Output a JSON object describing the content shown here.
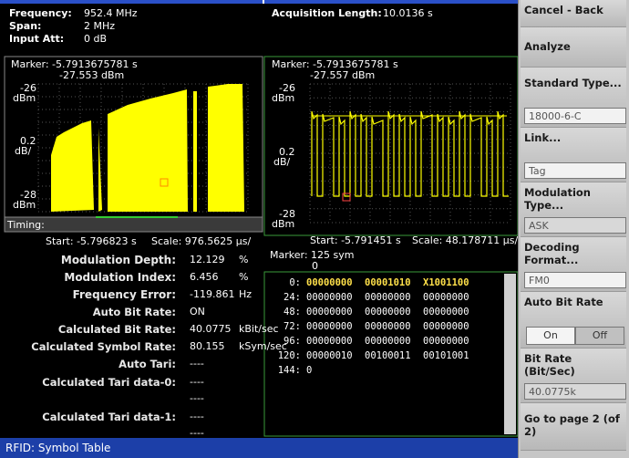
{
  "header": {
    "frequency_label": "Frequency:",
    "frequency": "952.4 MHz",
    "span_label": "Span:",
    "span": "2 MHz",
    "att_label": "Input Att:",
    "att": "0 dB",
    "acq_label": "Acquisition Length:",
    "acq": "10.0136 s"
  },
  "left_plot": {
    "marker": "Marker: -5.7913675781 s",
    "marker_value": "-27.553 dBm",
    "y_top": "-26",
    "y_top_unit": "dBm",
    "y_scale": "0.2",
    "y_scale_unit": "dB/",
    "y_bottom": "-28",
    "y_bottom_unit": "dBm",
    "timing": "Timing:",
    "start": "Start: -5.796823 s",
    "scale": "Scale: 976.5625 µs/"
  },
  "right_plot": {
    "marker": "Marker: -5.7913675781 s",
    "marker_value": "-27.557 dBm",
    "y_top": "-26",
    "y_top_unit": "dBm",
    "y_scale": "0.2",
    "y_scale_unit": "dB/",
    "y_bottom": "-28",
    "y_bottom_unit": "dBm",
    "start": "Start: -5.791451 s",
    "scale": "Scale: 48.178711 µs/"
  },
  "measurements": [
    {
      "label": "Modulation Depth:",
      "value": "12.129",
      "unit": "%"
    },
    {
      "label": "Modulation Index:",
      "value": "6.456",
      "unit": "%"
    },
    {
      "label": "Frequency Error:",
      "value": "-119.861",
      "unit": "Hz"
    },
    {
      "label": "Auto Bit Rate:",
      "value": "ON"
    },
    {
      "label": "Calculated Bit Rate:",
      "value": "40.0775",
      "unit": "kBit/sec"
    },
    {
      "label": "Calculated Symbol Rate:",
      "value": "80.155",
      "unit": "kSym/sec"
    },
    {
      "label": "Auto Tari:",
      "value": "----"
    },
    {
      "label": "Calculated Tari data-0:",
      "value": "----",
      "extra": "----"
    },
    {
      "label": "Calculated Tari data-1:",
      "value": "----",
      "extra": "----"
    }
  ],
  "symbol_table": {
    "marker": "Marker: 125 sym",
    "marker_sub": "0",
    "rows": [
      [
        "0:",
        "00000000",
        "00001010",
        "X1001100"
      ],
      [
        "24:",
        "00000000",
        "00000000",
        "00000000"
      ],
      [
        "48:",
        "00000000",
        "00000000",
        "00000000"
      ],
      [
        "72:",
        "00000000",
        "00000000",
        "00000000"
      ],
      [
        "96:",
        "00000000",
        "00000000",
        "00000000"
      ],
      [
        "120:",
        "00000010",
        "00100011",
        "00101001"
      ],
      [
        "144:",
        "0"
      ]
    ]
  },
  "status": "RFID: Symbol Table",
  "menu": {
    "cancel": "Cancel - Back",
    "analyze": "Analyze",
    "standard": "Standard Type...",
    "standard_value": "18000-6-C",
    "link": "Link...",
    "link_value": "Tag",
    "modulation": "Modulation Type...",
    "modulation_value": "ASK",
    "decoding": "Decoding Format...",
    "decoding_value": "FM0",
    "auto_bit_rate": "Auto Bit Rate",
    "on": "On",
    "off": "Off",
    "bit_rate": "Bit Rate (Bit/Sec)",
    "bit_rate_value": "40.0775k",
    "page": "Go to page 2 (of 2)"
  }
}
